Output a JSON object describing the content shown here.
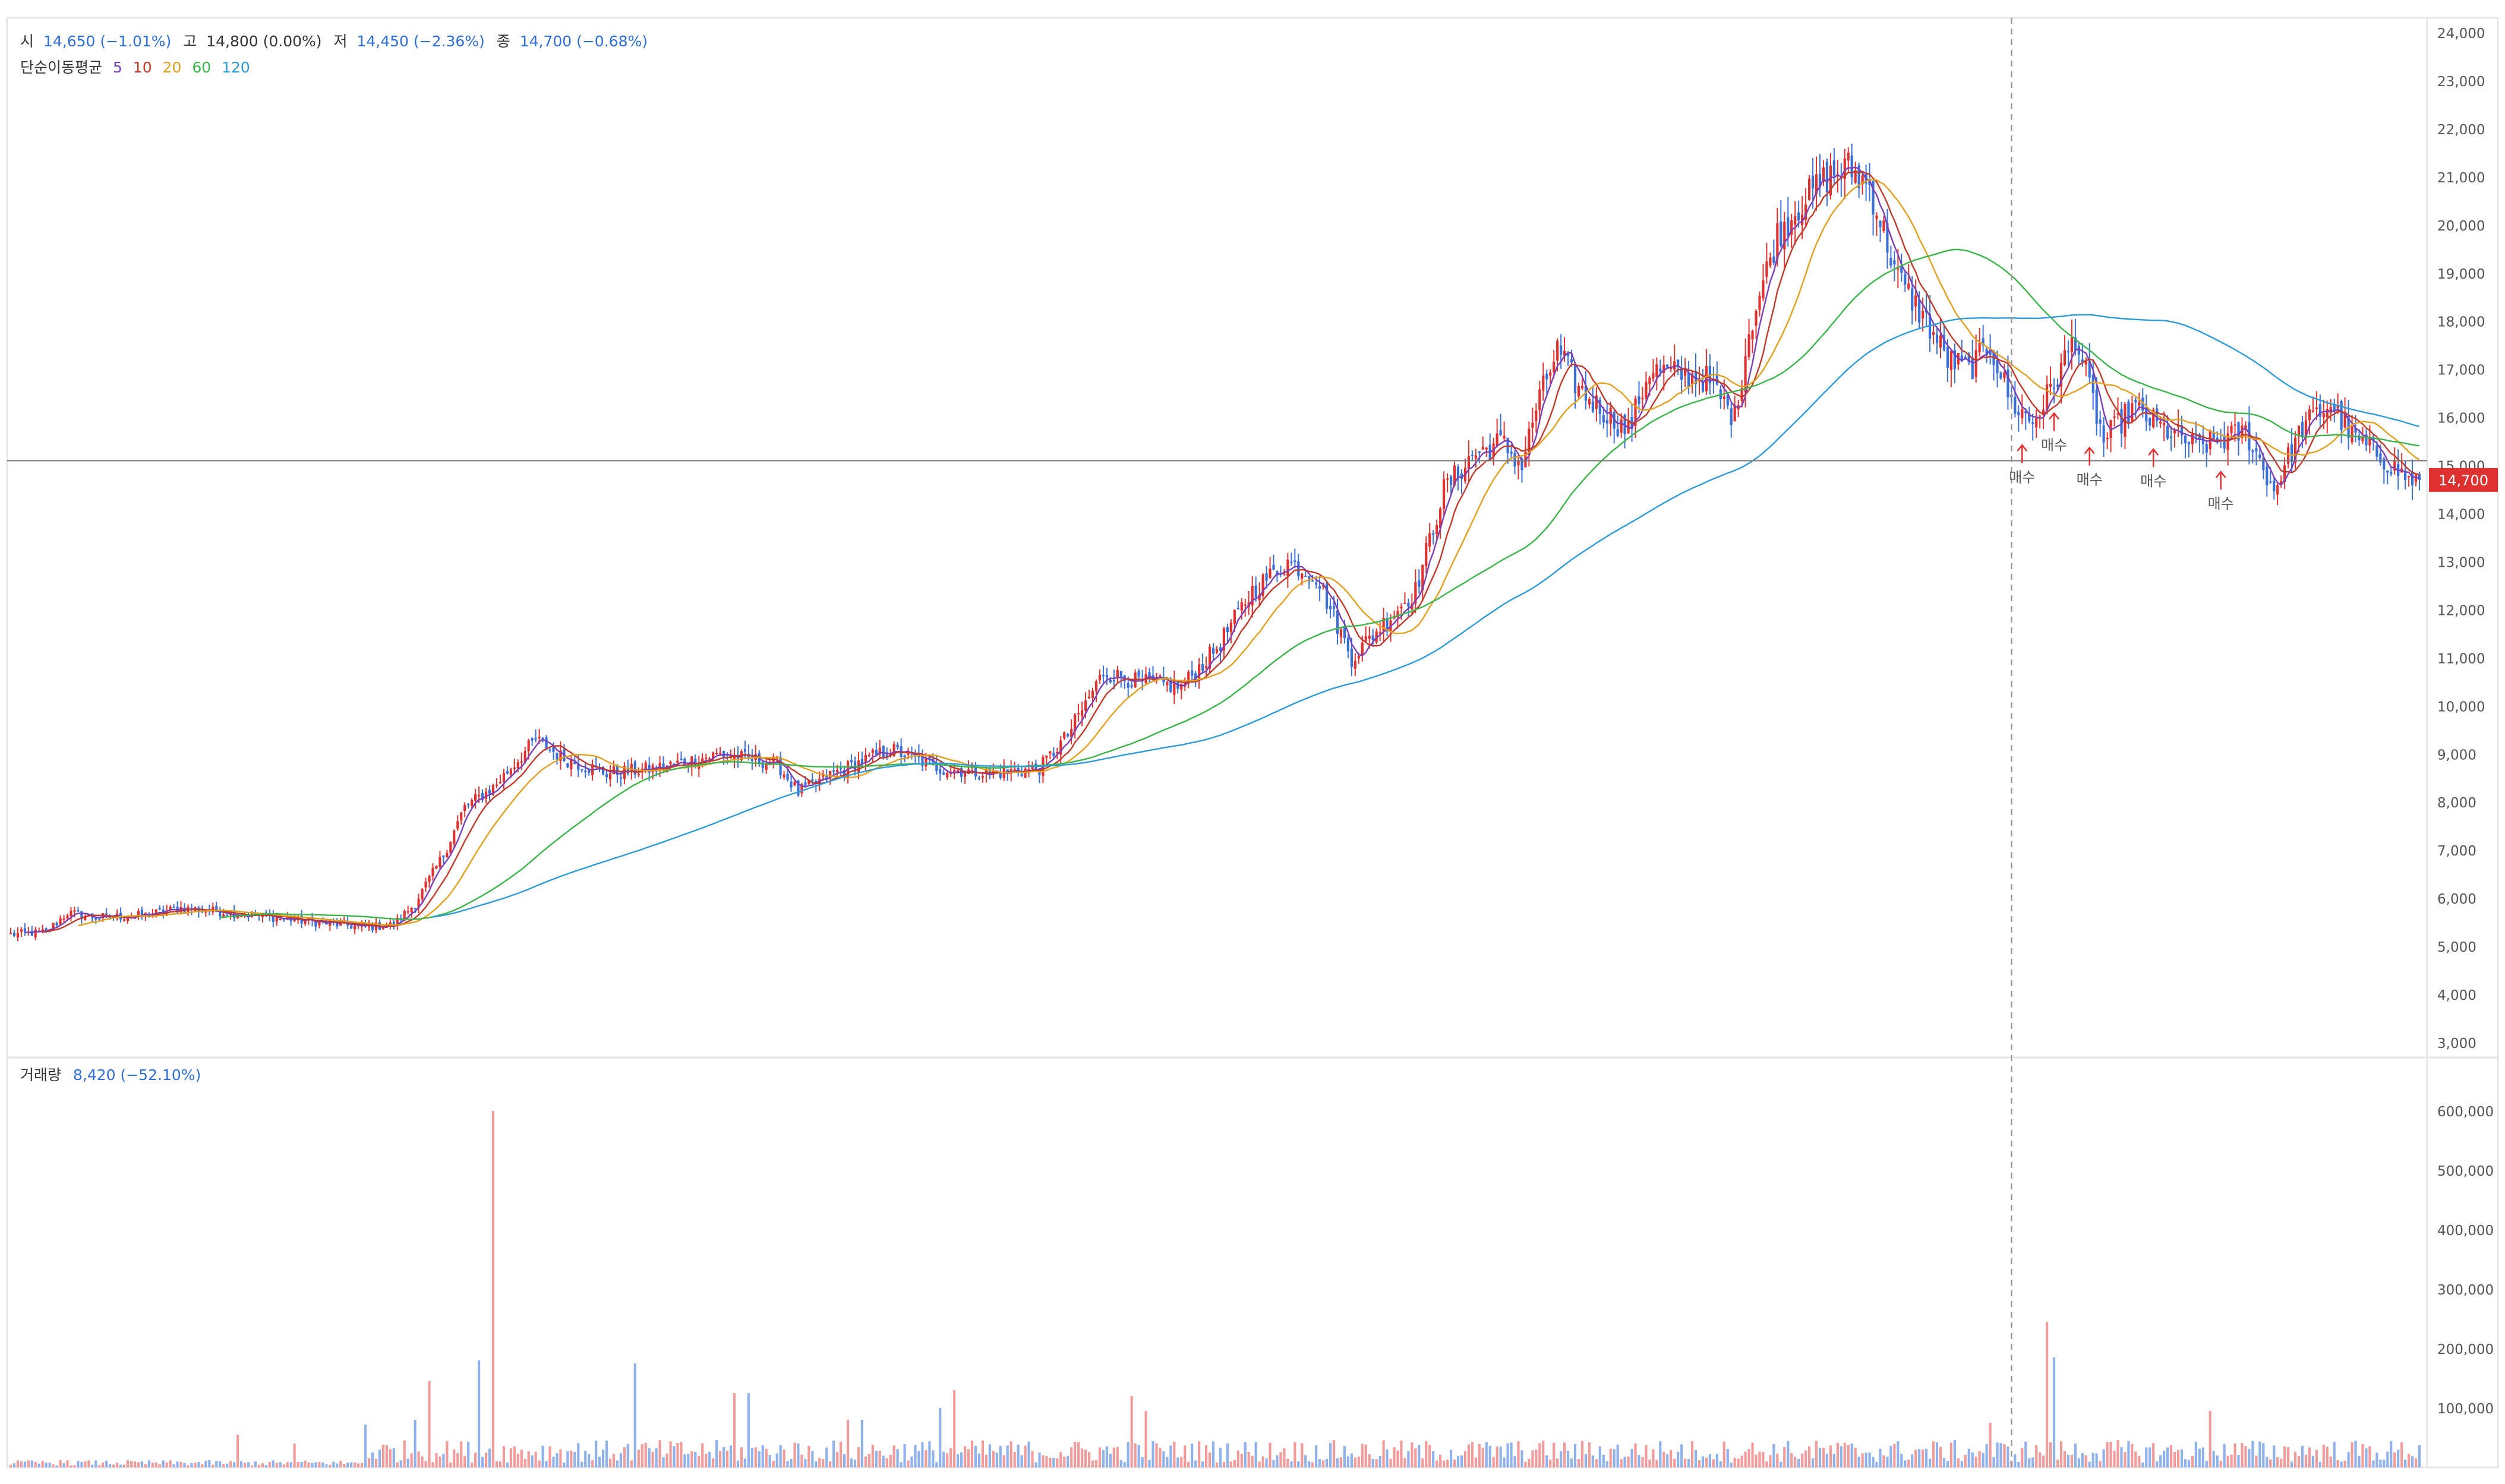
{
  "header": {
    "open_label": "시",
    "open_value": "14,650 (−1.01%)",
    "high_label": "고",
    "high_value": "14,800 (0.00%)",
    "low_label": "저",
    "low_value": "14,450 (−2.36%)",
    "close_label": "종",
    "close_value": "14,700 (−0.68%)",
    "ma_label": "단순이동평균",
    "ma_periods": [
      "5",
      "10",
      "20",
      "60",
      "120"
    ]
  },
  "volume_header": {
    "label": "거래량",
    "value": "8,420 (−52.10%)"
  },
  "colors": {
    "up": "#e03131",
    "down": "#3b6fd8",
    "up_light": "#f29b9b",
    "down_light": "#8fb2ec",
    "ma5": "#7b3fb5",
    "ma10": "#c0392b",
    "ma20": "#e0a020",
    "ma60": "#3cb44b",
    "ma120": "#2e9bd6",
    "text_blue": "#2f6fd6",
    "price_tag": "#e03131"
  },
  "chart_data": {
    "type": "candlestick",
    "price_axis": {
      "ylim": [
        3000,
        24000
      ],
      "ticks": [
        "3,000",
        "4,000",
        "5,000",
        "6,000",
        "7,000",
        "8,000",
        "9,000",
        "10,000",
        "11,000",
        "12,000",
        "13,000",
        "14,000",
        "15,000",
        "16,000",
        "17,000",
        "18,000",
        "19,000",
        "20,000",
        "21,000",
        "22,000",
        "23,000",
        "24,000"
      ]
    },
    "volume_axis": {
      "ylim": [
        0,
        650000
      ],
      "ticks": [
        "100,000",
        "200,000",
        "300,000",
        "400,000",
        "500,000",
        "600,000"
      ]
    },
    "current_price": 14700,
    "current_price_label": "14,700",
    "reference_line": 15100,
    "close_anchors": [
      [
        0,
        5250
      ],
      [
        10,
        5300
      ],
      [
        16,
        5700
      ],
      [
        24,
        5600
      ],
      [
        38,
        5650
      ],
      [
        48,
        5800
      ],
      [
        62,
        5700
      ],
      [
        80,
        5550
      ],
      [
        100,
        5400
      ],
      [
        108,
        5450
      ],
      [
        114,
        5900
      ],
      [
        122,
        6900
      ],
      [
        128,
        7900
      ],
      [
        136,
        8300
      ],
      [
        148,
        9300
      ],
      [
        156,
        8900
      ],
      [
        168,
        8600
      ],
      [
        182,
        8700
      ],
      [
        200,
        9000
      ],
      [
        216,
        8800
      ],
      [
        222,
        8200
      ],
      [
        232,
        8600
      ],
      [
        248,
        9100
      ],
      [
        262,
        8700
      ],
      [
        276,
        8600
      ],
      [
        290,
        8700
      ],
      [
        298,
        9400
      ],
      [
        308,
        10700
      ],
      [
        318,
        10500
      ],
      [
        330,
        10400
      ],
      [
        340,
        11200
      ],
      [
        350,
        12400
      ],
      [
        360,
        13000
      ],
      [
        368,
        12700
      ],
      [
        378,
        11000
      ],
      [
        388,
        11800
      ],
      [
        396,
        12400
      ],
      [
        404,
        14500
      ],
      [
        412,
        15200
      ],
      [
        420,
        15500
      ],
      [
        426,
        15000
      ],
      [
        430,
        16200
      ],
      [
        436,
        17400
      ],
      [
        442,
        16600
      ],
      [
        448,
        16200
      ],
      [
        456,
        15700
      ],
      [
        462,
        17000
      ],
      [
        470,
        16900
      ],
      [
        478,
        16800
      ],
      [
        486,
        16000
      ],
      [
        490,
        17800
      ],
      [
        498,
        19800
      ],
      [
        504,
        20400
      ],
      [
        512,
        21000
      ],
      [
        518,
        21200
      ],
      [
        524,
        20800
      ],
      [
        532,
        18900
      ],
      [
        540,
        18000
      ],
      [
        546,
        17200
      ],
      [
        552,
        17000
      ],
      [
        558,
        17500
      ],
      [
        564,
        16300
      ],
      [
        570,
        15900
      ],
      [
        576,
        16700
      ],
      [
        582,
        17700
      ],
      [
        590,
        15500
      ],
      [
        598,
        16200
      ],
      [
        606,
        15800
      ],
      [
        616,
        15400
      ],
      [
        622,
        15500
      ],
      [
        630,
        15700
      ],
      [
        638,
        14500
      ],
      [
        646,
        15800
      ],
      [
        654,
        16300
      ],
      [
        660,
        15600
      ],
      [
        668,
        15200
      ],
      [
        676,
        14700
      ]
    ],
    "volume_spikes": [
      [
        14,
        12000
      ],
      [
        64,
        55000
      ],
      [
        80,
        40000
      ],
      [
        100,
        72000
      ],
      [
        114,
        80000
      ],
      [
        118,
        145000
      ],
      [
        132,
        180000
      ],
      [
        136,
        600000
      ],
      [
        176,
        175000
      ],
      [
        204,
        125000
      ],
      [
        208,
        125000
      ],
      [
        236,
        80000
      ],
      [
        240,
        80000
      ],
      [
        262,
        100000
      ],
      [
        266,
        130000
      ],
      [
        316,
        120000
      ],
      [
        320,
        95000
      ],
      [
        558,
        75000
      ],
      [
        574,
        245000
      ],
      [
        576,
        185000
      ],
      [
        620,
        95000
      ]
    ],
    "buy_signals": [
      {
        "index": 567,
        "label": "매수"
      },
      {
        "index": 576,
        "label": "매수"
      },
      {
        "index": 586,
        "label": "매수"
      },
      {
        "index": 604,
        "label": "매수"
      },
      {
        "index": 623,
        "label": "매수"
      }
    ]
  }
}
